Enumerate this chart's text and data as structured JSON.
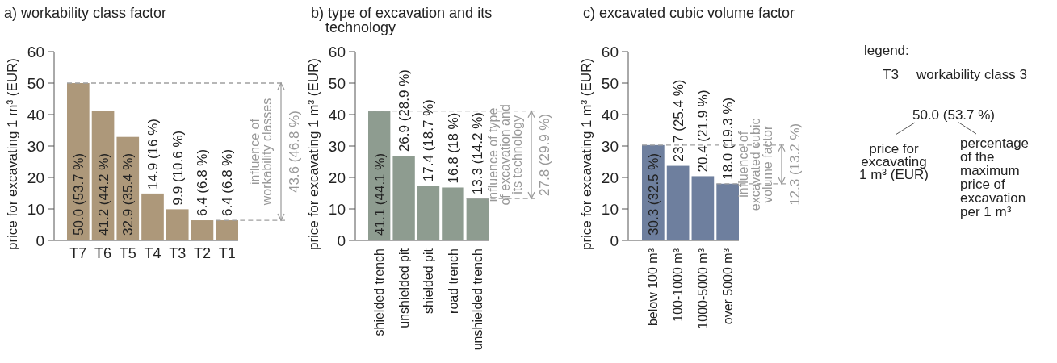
{
  "chart_data": [
    {
      "type": "bar",
      "title": "a) workability class factor",
      "ylabel": "price for excavating 1 m³ (EUR)",
      "categories": [
        "T7",
        "T6",
        "T5",
        "T4",
        "T3",
        "T2",
        "T1"
      ],
      "values": [
        50.0,
        41.2,
        32.9,
        14.9,
        9.9,
        6.4,
        6.4
      ],
      "value_labels": [
        "50.0 (53.7 %)",
        "41.2 (44.2 %)",
        "32.9 (35.4 %)",
        "14.9 (16 %)",
        "9.9 (10.6 %)",
        "6.4 (6.8 %)",
        "6.4 (6.8 %)"
      ],
      "color": "#ad987a",
      "ylim": [
        0,
        60
      ],
      "yticks": [
        0,
        10,
        20,
        30,
        40,
        50,
        60
      ],
      "grid": false,
      "ref_lines": [
        {
          "axis": "y",
          "value": 50.0,
          "color": "#a0a0a0",
          "line_style": "dashed"
        },
        {
          "axis": "y",
          "value": 6.4,
          "color": "#a0a0a0",
          "line_style": "dashed"
        }
      ],
      "annotations": [
        "influence of workability classes",
        "43.6 (46.8 %)"
      ]
    },
    {
      "type": "bar",
      "title": "b) type of excavation and its technology",
      "ylabel": "price for excavating 1 m³ (EUR)",
      "categories": [
        "shielded trench",
        "unshielded pit",
        "shielded pit",
        "road trench",
        "unshielded trench"
      ],
      "values": [
        41.1,
        26.9,
        17.4,
        16.8,
        13.3
      ],
      "value_labels": [
        "41.1 (44.1 %)",
        "26.9 (28.9 %)",
        "17.4 (18.7 %)",
        "16.8 (18 %)",
        "13.3 (14.2 %)"
      ],
      "color": "#8e9c90",
      "ylim": [
        0,
        60
      ],
      "yticks": [
        0,
        10,
        20,
        30,
        40,
        50,
        60
      ],
      "grid": false,
      "ref_lines": [
        {
          "axis": "y",
          "value": 41.1,
          "color": "#a0a0a0",
          "line_style": "dashed"
        },
        {
          "axis": "y",
          "value": 13.3,
          "color": "#a0a0a0",
          "line_style": "dashed"
        }
      ],
      "annotations": [
        "influence of type of excavation and its technology",
        "27.8 (29.9 %)"
      ]
    },
    {
      "type": "bar",
      "title": "c) excavated cubic volume factor",
      "ylabel": "price for excavating 1 m³ (EUR)",
      "categories": [
        "below 100 m³",
        "100-1000 m³",
        "1000-5000 m³",
        "over 5000 m³"
      ],
      "values": [
        30.3,
        23.7,
        20.4,
        18.0
      ],
      "value_labels": [
        "30.3 (32.5 %)",
        "23.7 (25.4 %)",
        "20.4 (21.9 %)",
        "18.0 (19.3 %)"
      ],
      "color": "#6e7f9e",
      "ylim": [
        0,
        60
      ],
      "yticks": [
        0,
        10,
        20,
        30,
        40,
        50,
        60
      ],
      "grid": false,
      "ref_lines": [
        {
          "axis": "y",
          "value": 30.3,
          "color": "#a0a0a0",
          "line_style": "dashed"
        },
        {
          "axis": "y",
          "value": 18.0,
          "color": "#a0a0a0",
          "line_style": "dashed"
        }
      ],
      "annotations": [
        "influence of excavated cubic volume factor",
        "12.3 (13.2 %)"
      ]
    },
    {
      "type": "other",
      "title": "legend:",
      "annotations": [
        "T3",
        "workability class 3",
        "50.0 (53.7 %)",
        "price for excavating 1 m³ (EUR)",
        "percentage of the maximum price of excavation per 1 m³"
      ]
    }
  ]
}
